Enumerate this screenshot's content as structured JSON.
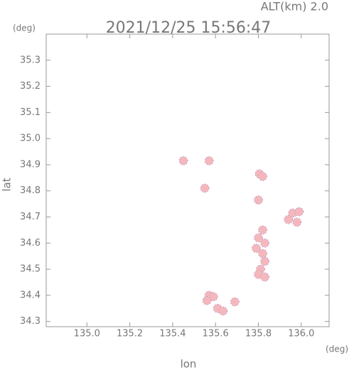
{
  "chart_data": {
    "type": "scatter",
    "title": "2021/12/25 15:56:47",
    "altitude_label": "ALT(km) 2.0",
    "y_unit": "(deg)",
    "x_unit": "(deg)",
    "xlabel": "lon",
    "ylabel": "lat",
    "x": [
      135.45,
      135.57,
      135.55,
      135.805,
      135.82,
      135.8,
      135.96,
      135.99,
      135.94,
      135.98,
      135.82,
      135.8,
      135.83,
      135.79,
      135.82,
      135.83,
      135.81,
      135.8,
      135.83,
      135.57,
      135.59,
      135.56,
      135.61,
      135.635,
      135.69
    ],
    "y": [
      34.915,
      34.915,
      34.81,
      34.865,
      34.855,
      34.765,
      34.715,
      34.72,
      34.69,
      34.68,
      34.65,
      34.62,
      34.6,
      34.58,
      34.56,
      34.53,
      34.5,
      34.48,
      34.47,
      34.4,
      34.395,
      34.38,
      34.35,
      34.34,
      34.375
    ],
    "color": "#f4b8bc",
    "edge_color": "#6a5acd",
    "xlim": [
      134.81,
      136.13
    ],
    "ylim": [
      34.28,
      35.4
    ],
    "xticks": [
      {
        "value": 135,
        "label": "135.0"
      },
      135.2,
      135.4,
      135.6,
      135.8,
      {
        "value": 136,
        "label": "136.0"
      }
    ],
    "yticks": [
      34.3,
      34.4,
      34.5,
      34.6,
      34.7,
      34.8,
      34.9,
      {
        "value": 35,
        "label": "35.0"
      },
      35.1,
      35.2,
      35.3
    ]
  }
}
